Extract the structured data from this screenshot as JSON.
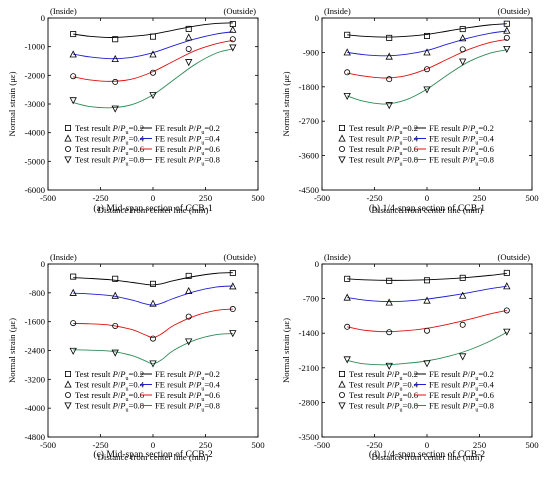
{
  "chart_data": [
    {
      "type": "line",
      "caption": "(a) Mid-span section of CCB-1",
      "corner_left": "(Inside)",
      "corner_right": "(Outside)",
      "xlabel": "Distance from center line (mm)",
      "ylabel": "Normal strain (με)",
      "xlim": [
        -500,
        500
      ],
      "ylim": [
        -6000,
        0
      ],
      "xticks": [
        -500,
        -250,
        0,
        250,
        500
      ],
      "yticks": [
        0,
        -1000,
        -2000,
        -3000,
        -4000,
        -5000,
        -6000
      ],
      "test_x": [
        -380,
        -180,
        0,
        170,
        380
      ],
      "series": [
        {
          "name": "P/Pu=0.2",
          "test": [
            -560,
            -740,
            -650,
            -380,
            -210
          ],
          "fe_x": [
            -380,
            -300,
            -200,
            -100,
            0,
            100,
            200,
            300,
            380
          ],
          "fe": [
            -560,
            -640,
            -680,
            -640,
            -560,
            -420,
            -280,
            -190,
            -170
          ]
        },
        {
          "name": "P/Pu=0.4",
          "test": [
            -1270,
            -1430,
            -1270,
            -680,
            -410
          ],
          "fe_x": [
            -380,
            -300,
            -200,
            -100,
            0,
            100,
            200,
            300,
            380
          ],
          "fe": [
            -1260,
            -1360,
            -1420,
            -1370,
            -1210,
            -960,
            -730,
            -560,
            -480
          ]
        },
        {
          "name": "P/Pu=0.6",
          "test": [
            -2030,
            -2230,
            -1910,
            -1080,
            -740
          ],
          "fe_x": [
            -380,
            -300,
            -200,
            -100,
            0,
            100,
            200,
            300,
            380
          ],
          "fe": [
            -2050,
            -2160,
            -2210,
            -2130,
            -1870,
            -1500,
            -1140,
            -900,
            -780
          ]
        },
        {
          "name": "P/Pu=0.8",
          "test": [
            -2870,
            -3160,
            -2690,
            -1540,
            -1030
          ],
          "fe_x": [
            -380,
            -300,
            -200,
            -100,
            0,
            100,
            200,
            300,
            380
          ],
          "fe": [
            -2950,
            -3090,
            -3130,
            -3020,
            -2680,
            -2150,
            -1620,
            -1230,
            -1080
          ]
        }
      ]
    },
    {
      "type": "line",
      "caption": "(b) 1/4-span section of CCB-1",
      "corner_left": "(Inside)",
      "corner_right": "(Outside)",
      "xlabel": "Distance from center line (mm)",
      "ylabel": "Normal strain (με)",
      "xlim": [
        -500,
        500
      ],
      "ylim": [
        -4500,
        0
      ],
      "xticks": [
        -500,
        -250,
        0,
        250,
        500
      ],
      "yticks": [
        0,
        -900,
        -1800,
        -2700,
        -3600,
        -4500
      ],
      "test_x": [
        -380,
        -180,
        0,
        170,
        380
      ],
      "series": [
        {
          "name": "P/Pu=0.2",
          "test": [
            -440,
            -520,
            -470,
            -290,
            -150
          ],
          "fe_x": [
            -380,
            -300,
            -200,
            -100,
            0,
            100,
            200,
            300,
            380
          ],
          "fe": [
            -440,
            -480,
            -500,
            -480,
            -430,
            -340,
            -250,
            -180,
            -150
          ]
        },
        {
          "name": "P/Pu=0.4",
          "test": [
            -900,
            -1010,
            -900,
            -530,
            -330
          ],
          "fe_x": [
            -380,
            -300,
            -200,
            -100,
            0,
            100,
            200,
            300,
            380
          ],
          "fe": [
            -900,
            -960,
            -990,
            -950,
            -850,
            -680,
            -520,
            -400,
            -340
          ]
        },
        {
          "name": "P/Pu=0.6",
          "test": [
            -1420,
            -1600,
            -1340,
            -820,
            -520
          ],
          "fe_x": [
            -380,
            -300,
            -200,
            -100,
            0,
            100,
            200,
            300,
            380
          ],
          "fe": [
            -1440,
            -1520,
            -1570,
            -1510,
            -1330,
            -1070,
            -820,
            -640,
            -560
          ]
        },
        {
          "name": "P/Pu=0.8",
          "test": [
            -2040,
            -2280,
            -1870,
            -1140,
            -810
          ],
          "fe_x": [
            -380,
            -300,
            -200,
            -100,
            0,
            100,
            200,
            300,
            380
          ],
          "fe": [
            -2040,
            -2180,
            -2250,
            -2140,
            -1860,
            -1480,
            -1140,
            -920,
            -830
          ]
        }
      ]
    },
    {
      "type": "line",
      "caption": "(c) Mid-span section of CCB-2",
      "corner_left": "(Inside)",
      "corner_right": "(Outside)",
      "xlabel": "Distance from center line (mm)",
      "ylabel": "Normal strain (με)",
      "xlim": [
        -500,
        500
      ],
      "ylim": [
        -4800,
        0
      ],
      "xticks": [
        -500,
        -250,
        0,
        250,
        500
      ],
      "yticks": [
        0,
        -800,
        -1600,
        -2400,
        -3200,
        -4000,
        -4800
      ],
      "test_x": [
        -380,
        -180,
        0,
        170,
        380
      ],
      "series": [
        {
          "name": "P/Pu=0.2",
          "test": [
            -350,
            -410,
            -550,
            -330,
            -250
          ],
          "fe_x": [
            -380,
            -300,
            -200,
            -100,
            -40,
            0,
            40,
            100,
            200,
            300,
            380
          ],
          "fe": [
            -380,
            -400,
            -440,
            -510,
            -560,
            -580,
            -550,
            -460,
            -340,
            -260,
            -240
          ]
        },
        {
          "name": "P/Pu=0.4",
          "test": [
            -800,
            -880,
            -1100,
            -750,
            -620
          ],
          "fe_x": [
            -380,
            -300,
            -200,
            -100,
            -40,
            0,
            40,
            100,
            200,
            300,
            380
          ],
          "fe": [
            -810,
            -830,
            -880,
            -1000,
            -1100,
            -1140,
            -1090,
            -950,
            -760,
            -640,
            -610
          ]
        },
        {
          "name": "P/Pu=0.6",
          "test": [
            -1640,
            -1720,
            -2070,
            -1460,
            -1250
          ],
          "fe_x": [
            -380,
            -300,
            -200,
            -100,
            -40,
            0,
            40,
            100,
            200,
            300,
            380
          ],
          "fe": [
            -1650,
            -1660,
            -1700,
            -1820,
            -1960,
            -2040,
            -1940,
            -1700,
            -1440,
            -1290,
            -1250
          ]
        },
        {
          "name": "P/Pu=0.8",
          "test": [
            -2410,
            -2460,
            -2760,
            -2150,
            -1920
          ],
          "fe_x": [
            -380,
            -300,
            -200,
            -100,
            -40,
            0,
            40,
            100,
            200,
            300,
            380
          ],
          "fe": [
            -2380,
            -2390,
            -2420,
            -2540,
            -2680,
            -2770,
            -2660,
            -2390,
            -2110,
            -1960,
            -1930
          ]
        }
      ]
    },
    {
      "type": "line",
      "caption": "(d) 1/4-span section of CCB-2",
      "corner_left": "(Inside)",
      "corner_right": "(Outside)",
      "xlabel": "Distance from center line (mm)",
      "ylabel": "Normal strain (με)",
      "xlim": [
        -500,
        500
      ],
      "ylim": [
        -3500,
        0
      ],
      "xticks": [
        -500,
        -250,
        0,
        250,
        500
      ],
      "yticks": [
        0,
        -700,
        -1400,
        -2100,
        -2800,
        -3500
      ],
      "test_x": [
        -380,
        -180,
        0,
        170,
        380
      ],
      "series": [
        {
          "name": "P/Pu=0.2",
          "test": [
            -300,
            -340,
            -330,
            -280,
            -180
          ],
          "fe_x": [
            -380,
            -300,
            -200,
            -100,
            0,
            100,
            200,
            300,
            380
          ],
          "fe": [
            -300,
            -320,
            -330,
            -330,
            -320,
            -300,
            -270,
            -230,
            -190
          ]
        },
        {
          "name": "P/Pu=0.4",
          "test": [
            -680,
            -780,
            -740,
            -640,
            -450
          ],
          "fe_x": [
            -380,
            -300,
            -200,
            -100,
            0,
            100,
            200,
            300,
            380
          ],
          "fe": [
            -680,
            -730,
            -760,
            -750,
            -710,
            -650,
            -580,
            -500,
            -450
          ]
        },
        {
          "name": "P/Pu=0.6",
          "test": [
            -1270,
            -1380,
            -1350,
            -1230,
            -940
          ],
          "fe_x": [
            -380,
            -300,
            -200,
            -100,
            0,
            100,
            200,
            300,
            380
          ],
          "fe": [
            -1270,
            -1340,
            -1370,
            -1350,
            -1300,
            -1220,
            -1120,
            -1010,
            -940
          ]
        },
        {
          "name": "P/Pu=0.8",
          "test": [
            -1930,
            -2060,
            -2010,
            -1870,
            -1370
          ],
          "fe_x": [
            -380,
            -300,
            -200,
            -100,
            0,
            100,
            200,
            300,
            380
          ],
          "fe": [
            -1950,
            -2020,
            -2040,
            -2010,
            -1960,
            -1870,
            -1740,
            -1560,
            -1380
          ]
        }
      ]
    }
  ],
  "legend": {
    "test_prefix": "Test result ",
    "fe_prefix": "FE result ",
    "ratios": [
      "0.2",
      "0.4",
      "0.6",
      "0.8"
    ],
    "P": "P",
    "slash": "/",
    "u": "u",
    "eq": "=",
    "markers": [
      "square",
      "triangle-up",
      "circle",
      "triangle-down"
    ],
    "series_colors": [
      "#000000",
      "#1f1fd6",
      "#e01010",
      "#2e8b57"
    ]
  }
}
